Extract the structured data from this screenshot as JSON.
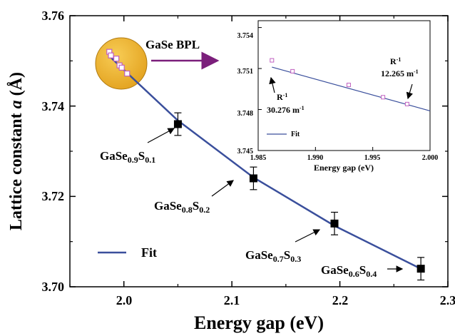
{
  "chart_data": [
    {
      "type": "scatter",
      "xlabel": "Energy gap (eV)",
      "ylabel_main": "Lattice constant ",
      "ylabel_italic": "a",
      "ylabel_unit": " (Å)",
      "xlim": [
        1.95,
        2.3
      ],
      "ylim": [
        3.7,
        3.76
      ],
      "xticks": [
        "2.0",
        "2.1",
        "2.2",
        "2.3"
      ],
      "yticks": [
        "3.70",
        "3.72",
        "3.74",
        "3.76"
      ],
      "legend_label": "Fit",
      "legend_position": "bottom-left",
      "line_color": "#3a4f9c",
      "highlight_label": "GaSe BPL",
      "highlight_color": "#f0b030",
      "series": [
        {
          "name": "data",
          "points": [
            {
              "x": 2.05,
              "y": 3.736,
              "err": 0.0025,
              "label_main": "GaSe",
              "sub1": "0.9",
              "mid": "S",
              "sub2": "0.1"
            },
            {
              "x": 2.12,
              "y": 3.724,
              "err": 0.0025,
              "label_main": "GaSe",
              "sub1": "0.8",
              "mid": "S",
              "sub2": "0.2"
            },
            {
              "x": 2.195,
              "y": 3.714,
              "err": 0.0025,
              "label_main": "GaSe",
              "sub1": "0.7",
              "mid": "S",
              "sub2": "0.3"
            },
            {
              "x": 2.275,
              "y": 3.704,
              "err": 0.0025,
              "label_main": "GaSe",
              "sub1": "0.6",
              "mid": "S",
              "sub2": "0.4"
            }
          ]
        },
        {
          "name": "GaSe BPL",
          "points": [
            {
              "x": 1.9865,
              "y": 3.752
            },
            {
              "x": 1.988,
              "y": 3.7512
            },
            {
              "x": 1.993,
              "y": 3.7505
            },
            {
              "x": 1.996,
              "y": 3.749
            },
            {
              "x": 1.998,
              "y": 3.7485
            },
            {
              "x": 2.003,
              "y": 3.7472
            }
          ]
        },
        {
          "name": "Fit",
          "points": [
            {
              "x": 1.986,
              "y": 3.7512
            },
            {
              "x": 2.0,
              "y": 3.748
            },
            {
              "x": 2.05,
              "y": 3.7368
            },
            {
              "x": 2.12,
              "y": 3.7242
            },
            {
              "x": 2.195,
              "y": 3.7135
            },
            {
              "x": 2.275,
              "y": 3.704
            }
          ]
        }
      ]
    },
    {
      "type": "scatter",
      "xlabel": "Energy gap (eV)",
      "xlim": [
        1.985,
        2.0
      ],
      "ylim": [
        3.745,
        3.7545
      ],
      "xticks": [
        "1.985",
        "1.990",
        "1.995",
        "2.000"
      ],
      "yticks": [
        "3.745",
        "3.748",
        "3.751",
        "3.754"
      ],
      "legend_label": "Fit",
      "annotations": [
        {
          "text_main": "R",
          "sup": "-1",
          "value": "30.276 m",
          "value_sup": "-1"
        },
        {
          "text_main": "R",
          "sup": "-1",
          "value": "12.265 m",
          "value_sup": "-1"
        }
      ],
      "series": [
        {
          "name": "data",
          "points": [
            {
              "x": 1.9862,
              "y": 3.7516
            },
            {
              "x": 1.988,
              "y": 3.7508
            },
            {
              "x": 1.9929,
              "y": 3.7498
            },
            {
              "x": 1.9959,
              "y": 3.7489
            },
            {
              "x": 1.998,
              "y": 3.7484
            }
          ]
        },
        {
          "name": "Fit",
          "points": [
            {
              "x": 1.9862,
              "y": 3.7511
            },
            {
              "x": 2.0,
              "y": 3.7479
            }
          ]
        }
      ]
    }
  ]
}
